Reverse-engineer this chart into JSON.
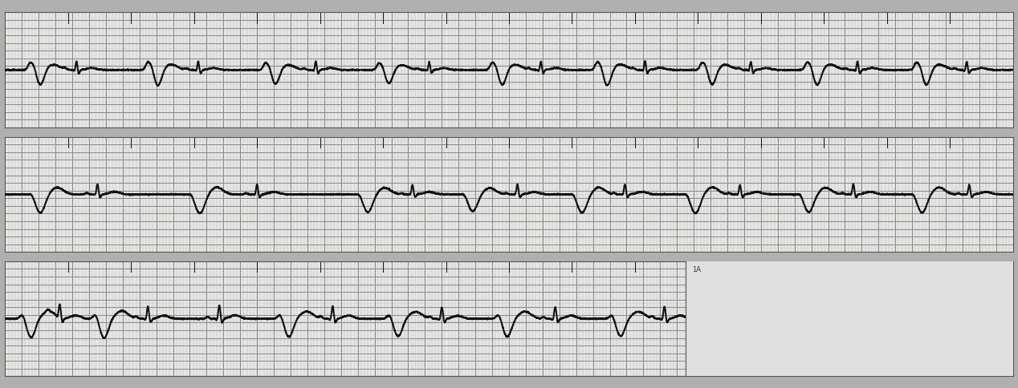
{
  "bg_color": "#b0b0b0",
  "strip_bg": "#f5f5f0",
  "grid_minor_color": "#bbbbbb",
  "grid_major_color": "#888888",
  "ecg_color": "#111111",
  "ecg_linewidth": 1.5,
  "grid_minor_linewidth": 0.35,
  "grid_major_linewidth": 0.7,
  "border_color": "#555555",
  "label_1a": "1A",
  "figsize": [
    12.68,
    4.85
  ],
  "dpi": 100,
  "white_box_color": "#e0e0e0",
  "separator_color": "#777777"
}
